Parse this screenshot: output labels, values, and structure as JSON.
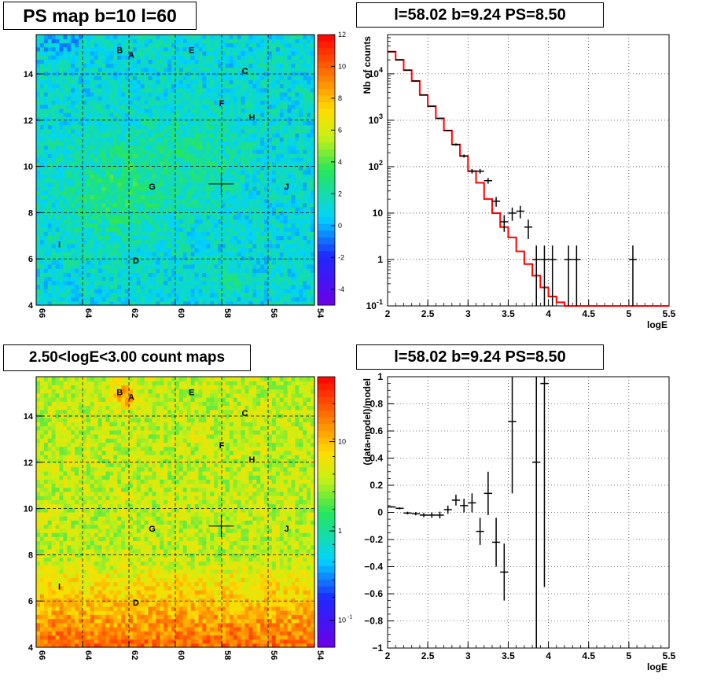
{
  "panels": {
    "ps_map": {
      "title": "PS map b=10 l=60",
      "x_ticks": [
        "66",
        "64",
        "62",
        "60",
        "58",
        "56",
        "54"
      ],
      "y_ticks": [
        "4",
        "6",
        "8",
        "10",
        "12",
        "14"
      ],
      "colorbar_ticks": [
        "12",
        "10",
        "8",
        "6",
        "4",
        "2",
        "0",
        "-2",
        "-4"
      ],
      "sources": [
        "A",
        "B",
        "C",
        "D",
        "E",
        "F",
        "G",
        "H",
        "I",
        "J"
      ]
    },
    "spectrum": {
      "title": "l=58.02 b=9.24 PS=8.50",
      "xlabel": "logE",
      "ylabel": "Nb of counts"
    },
    "count_map": {
      "title": "2.50<logE<3.00 count maps",
      "x_ticks": [
        "66",
        "64",
        "62",
        "60",
        "58",
        "56",
        "54"
      ],
      "y_ticks": [
        "4",
        "6",
        "8",
        "10",
        "12",
        "14"
      ],
      "colorbar_ticks": [
        "10",
        "1",
        "10"
      ],
      "colorbar_exponent": "-1",
      "sources": [
        "A",
        "B",
        "C",
        "D",
        "E",
        "F",
        "G",
        "H",
        "I",
        "J"
      ]
    },
    "residuals": {
      "title": "l=58.02 b=9.24 PS=8.50",
      "xlabel": "logE",
      "ylabel": "(data-model)/model"
    }
  },
  "colors": {
    "model_line": "#ff0000",
    "data_points": "#000000",
    "grid": "#000000"
  },
  "chart_data": [
    {
      "type": "heatmap",
      "title": "PS map b=10 l=60",
      "xlabel": "",
      "ylabel": "",
      "xlim": [
        66,
        54
      ],
      "ylim": [
        4,
        15.7
      ],
      "zlim": [
        -5,
        12
      ],
      "grid": true,
      "marker": {
        "l": 58.02,
        "b": 9.24
      },
      "source_positions": [
        {
          "name": "A",
          "l": 61.9,
          "b": 14.7
        },
        {
          "name": "B",
          "l": 62.4,
          "b": 14.9
        },
        {
          "name": "C",
          "l": 57.0,
          "b": 14.0
        },
        {
          "name": "D",
          "l": 61.7,
          "b": 5.8
        },
        {
          "name": "E",
          "l": 59.3,
          "b": 14.9
        },
        {
          "name": "F",
          "l": 58.0,
          "b": 12.6
        },
        {
          "name": "G",
          "l": 61.0,
          "b": 9.0
        },
        {
          "name": "H",
          "l": 56.7,
          "b": 12.0
        },
        {
          "name": "I",
          "l": 65.0,
          "b": 6.5
        },
        {
          "name": "J",
          "l": 55.2,
          "b": 9.0
        }
      ]
    },
    {
      "type": "line",
      "title": "l=58.02 b=9.24 PS=8.50",
      "xlabel": "logE",
      "ylabel": "Nb of counts",
      "xlim": [
        2,
        5.5
      ],
      "ylim": [
        0.1,
        70000
      ],
      "y_scale": "log",
      "grid": true,
      "series": [
        {
          "kind": "step",
          "bin_width": 0.1,
          "x": [
            2.05,
            2.15,
            2.25,
            2.35,
            2.45,
            2.55,
            2.65,
            2.75,
            2.85,
            2.95,
            3.05,
            3.15,
            3.25,
            3.35,
            3.45,
            3.55,
            3.65,
            3.75,
            3.85,
            3.95,
            4.05,
            4.15,
            4.25,
            4.35,
            4.45,
            4.55,
            4.65,
            4.75,
            4.85,
            4.95,
            5.05,
            5.15,
            5.25,
            5.35,
            5.45
          ],
          "y": [
            30000,
            20000,
            12000,
            7000,
            3500,
            2000,
            1100,
            600,
            300,
            170,
            80,
            45,
            20,
            10,
            5,
            3,
            1.5,
            0.8,
            0.45,
            0.25,
            0.16,
            0.12,
            0.1,
            0.1,
            0.1,
            0.1,
            0.1,
            0.1,
            0.1,
            0.1,
            0.1,
            0.1,
            0.1,
            0.1,
            0.1
          ]
        },
        {
          "kind": "points",
          "x": [
            2.05,
            2.15,
            2.25,
            2.35,
            2.45,
            2.55,
            2.65,
            2.75,
            2.85,
            2.95,
            3.05,
            3.15,
            3.25,
            3.35,
            3.45,
            3.55,
            3.65,
            3.75,
            3.85,
            3.95,
            4.05,
            4.25,
            4.35,
            5.05
          ],
          "y": [
            30000,
            20000,
            12000,
            7000,
            3500,
            2000,
            1100,
            600,
            300,
            170,
            80,
            80,
            50,
            18,
            6.5,
            10,
            11,
            5,
            1,
            1,
            1,
            1,
            1,
            1
          ]
        }
      ]
    },
    {
      "type": "heatmap",
      "title": "2.50<logE<3.00 count maps",
      "xlim": [
        66,
        54
      ],
      "ylim": [
        4,
        15.7
      ],
      "z_scale": "log",
      "grid": true
    },
    {
      "type": "scatter",
      "title": "l=58.02 b=9.24 PS=8.50",
      "xlabel": "logE",
      "ylabel": "(data-model)/model",
      "xlim": [
        2,
        5.5
      ],
      "ylim": [
        -1,
        1
      ],
      "grid": true,
      "series": [
        {
          "x": [
            2.05,
            2.15,
            2.25,
            2.35,
            2.45,
            2.55,
            2.65,
            2.75,
            2.85,
            2.95,
            3.05,
            3.15,
            3.25,
            3.35,
            3.45,
            3.55,
            3.85,
            3.95
          ],
          "y": [
            0.04,
            0.03,
            -0.005,
            -0.01,
            -0.02,
            -0.02,
            -0.02,
            0.02,
            0.09,
            0.05,
            0.07,
            -0.14,
            0.14,
            -0.22,
            -0.44,
            0.67,
            0.37,
            0.95
          ],
          "err": [
            0.005,
            0.007,
            0.01,
            0.012,
            0.015,
            0.02,
            0.025,
            0.03,
            0.04,
            0.05,
            0.07,
            0.1,
            0.16,
            0.18,
            0.21,
            0.53,
            1.5,
            1.5
          ]
        }
      ]
    }
  ]
}
